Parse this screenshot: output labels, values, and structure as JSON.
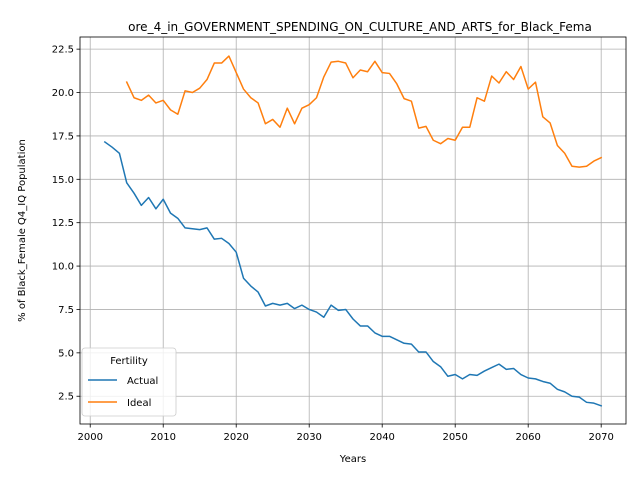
{
  "chart_data": {
    "type": "line",
    "title": "ore_4_in_GOVERNMENT_SPENDING_ON_CULTURE_AND_ARTS_for_Black_Fema",
    "xlabel": "Years",
    "ylabel": "% of Black_Female Q4_IQ Population",
    "xlim": [
      1998.6,
      2073.4
    ],
    "ylim": [
      0.9,
      23.2
    ],
    "xticks": [
      2000,
      2010,
      2020,
      2030,
      2040,
      2050,
      2060,
      2070
    ],
    "xtick_labels": [
      "2000",
      "2010",
      "2020",
      "2030",
      "2040",
      "2050",
      "2060",
      "2070"
    ],
    "yticks": [
      2.5,
      5.0,
      7.5,
      10.0,
      12.5,
      15.0,
      17.5,
      20.0,
      22.5
    ],
    "ytick_labels": [
      "2.5",
      "5.0",
      "7.5",
      "10.0",
      "12.5",
      "15.0",
      "17.5",
      "20.0",
      "22.5"
    ],
    "grid": true,
    "legend": {
      "title": "Fertility",
      "position": "lower-left"
    },
    "series": [
      {
        "name": "Actual",
        "color": "#1f77b4",
        "x": [
          2002,
          2003,
          2004,
          2005,
          2006,
          2007,
          2008,
          2009,
          2010,
          2011,
          2012,
          2013,
          2014,
          2015,
          2016,
          2017,
          2018,
          2019,
          2020,
          2021,
          2022,
          2023,
          2024,
          2025,
          2026,
          2027,
          2028,
          2029,
          2030,
          2031,
          2032,
          2033,
          2034,
          2035,
          2036,
          2037,
          2038,
          2039,
          2040,
          2041,
          2042,
          2043,
          2044,
          2045,
          2046,
          2047,
          2048,
          2049,
          2050,
          2051,
          2052,
          2053,
          2054,
          2055,
          2056,
          2057,
          2058,
          2059,
          2060,
          2061,
          2062,
          2063,
          2064,
          2065,
          2066,
          2067,
          2068,
          2069,
          2070
        ],
        "y": [
          17.15,
          16.85,
          16.5,
          14.8,
          14.2,
          13.5,
          13.95,
          13.3,
          13.85,
          13.05,
          12.75,
          12.2,
          12.15,
          12.1,
          12.2,
          11.55,
          11.6,
          11.3,
          10.8,
          9.3,
          8.85,
          8.5,
          7.7,
          7.85,
          7.75,
          7.85,
          7.55,
          7.75,
          7.5,
          7.35,
          7.05,
          7.75,
          7.45,
          7.5,
          6.95,
          6.55,
          6.55,
          6.15,
          5.95,
          5.95,
          5.75,
          5.55,
          5.5,
          5.05,
          5.05,
          4.5,
          4.2,
          3.65,
          3.75,
          3.5,
          3.75,
          3.7,
          3.95,
          4.15,
          4.35,
          4.05,
          4.1,
          3.75,
          3.55,
          3.5,
          3.35,
          3.25,
          2.9,
          2.75,
          2.5,
          2.45,
          2.15,
          2.1,
          1.95
        ]
      },
      {
        "name": "Ideal",
        "color": "#ff7f0e",
        "x": [
          2005,
          2006,
          2007,
          2008,
          2009,
          2010,
          2011,
          2012,
          2013,
          2014,
          2015,
          2016,
          2017,
          2018,
          2019,
          2020,
          2021,
          2022,
          2023,
          2024,
          2025,
          2026,
          2027,
          2028,
          2029,
          2030,
          2031,
          2032,
          2033,
          2034,
          2035,
          2036,
          2037,
          2038,
          2039,
          2040,
          2041,
          2042,
          2043,
          2044,
          2045,
          2046,
          2047,
          2048,
          2049,
          2050,
          2051,
          2052,
          2053,
          2054,
          2055,
          2056,
          2057,
          2058,
          2059,
          2060,
          2061,
          2062,
          2063,
          2064,
          2065,
          2066,
          2067,
          2068,
          2069,
          2070
        ],
        "y": [
          20.6,
          19.7,
          19.55,
          19.85,
          19.4,
          19.55,
          19.0,
          18.75,
          20.1,
          20.0,
          20.25,
          20.75,
          21.7,
          21.7,
          22.1,
          21.15,
          20.2,
          19.7,
          19.4,
          18.2,
          18.45,
          18.0,
          19.1,
          18.2,
          19.1,
          19.3,
          19.7,
          20.9,
          21.75,
          21.8,
          21.7,
          20.85,
          21.3,
          21.2,
          21.8,
          21.15,
          21.1,
          20.5,
          19.65,
          19.5,
          17.95,
          18.05,
          17.25,
          17.05,
          17.35,
          17.25,
          18.0,
          18.0,
          19.7,
          19.5,
          20.95,
          20.55,
          21.2,
          20.75,
          21.5,
          20.2,
          20.6,
          18.6,
          18.25,
          16.95,
          16.5,
          15.75,
          15.7,
          15.75,
          16.05,
          16.25
        ]
      }
    ]
  }
}
